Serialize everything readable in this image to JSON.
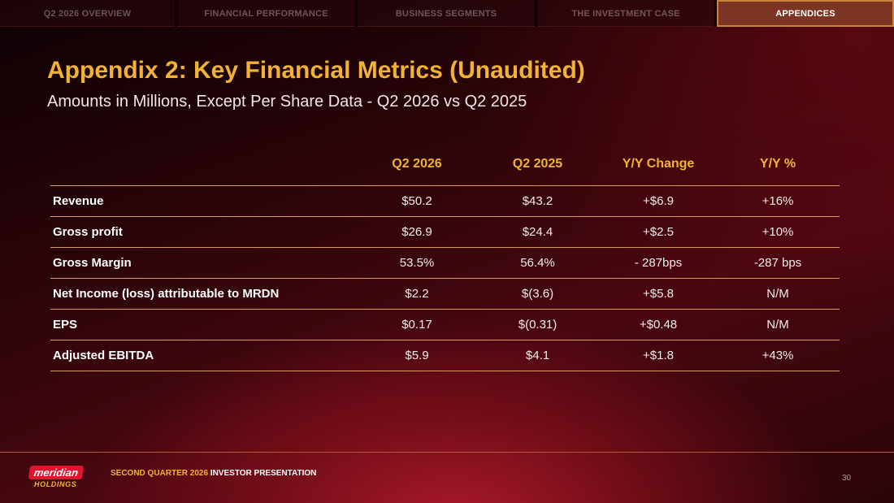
{
  "nav": {
    "tabs": [
      {
        "label": "Q2 2026 OVERVIEW"
      },
      {
        "label": "FINANCIAL PERFORMANCE"
      },
      {
        "label": "BUSINESS SEGMENTS"
      },
      {
        "label": "THE INVESTMENT CASE"
      },
      {
        "label": "APPENDICES"
      }
    ],
    "active_index": 4
  },
  "title": "Appendix 2: Key Financial Metrics (Unaudited)",
  "subtitle": "Amounts in Millions, Except Per Share Data - Q2 2026 vs Q2 2025",
  "table": {
    "columns": [
      "",
      "Q2 2026",
      "Q2 2025",
      "Y/Y Change",
      "Y/Y %"
    ],
    "rows": [
      {
        "label": "Revenue",
        "q2_2026": "$50.2",
        "q2_2025": "$43.2",
        "yy_change": "+$6.9",
        "yy_pct": "+16%"
      },
      {
        "label": "Gross profit",
        "q2_2026": "$26.9",
        "q2_2025": "$24.4",
        "yy_change": "+$2.5",
        "yy_pct": "+10%"
      },
      {
        "label": "Gross Margin",
        "q2_2026": "53.5%",
        "q2_2025": "56.4%",
        "yy_change": "- 287bps",
        "yy_pct": "-287 bps"
      },
      {
        "label": "Net Income (loss) attributable to MRDN",
        "q2_2026": "$2.2",
        "q2_2025": "$(3.6)",
        "yy_change": "+$5.8",
        "yy_pct": "N/M"
      },
      {
        "label": "EPS",
        "q2_2026": "$0.17",
        "q2_2025": "$(0.31)",
        "yy_change": "+$0.48",
        "yy_pct": "N/M"
      },
      {
        "label": "Adjusted EBITDA",
        "q2_2026": "$5.9",
        "q2_2025": "$4.1",
        "yy_change": "+$1.8",
        "yy_pct": "+43%"
      }
    ]
  },
  "footer": {
    "logo_top": "meridian",
    "logo_bottom": "HOLDINGS",
    "text_highlight": "SECOND QUARTER 2026",
    "text_rest": " INVESTOR PRESENTATION",
    "page_number": "30"
  },
  "colors": {
    "accent": "#f2b233",
    "brand_red": "#e0142c",
    "active_tab": "#7b3522",
    "rule": "#d79a63"
  }
}
